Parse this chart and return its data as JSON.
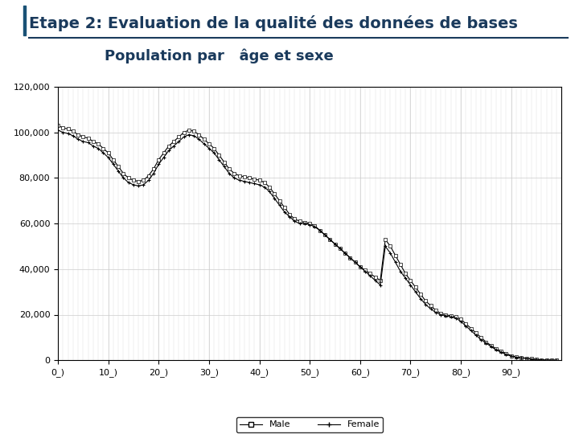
{
  "title_main": "Etape 2: Evaluation de la qualité des données de bases",
  "title_sub": "Population par   âge et sexe",
  "bg_color": "#ffffff",
  "plot_bg": "#ffffff",
  "xlim": [
    0,
    100
  ],
  "ylim": [
    0,
    120000
  ],
  "yticks": [
    0,
    20000,
    40000,
    60000,
    80000,
    100000,
    120000
  ],
  "xtick_labels": [
    "0_)",
    "10_)",
    "20_)",
    "30_)",
    "40_)",
    "50_)",
    "60_)",
    "70_)",
    "80_)",
    "90_)"
  ],
  "xtick_positions": [
    0,
    10,
    20,
    30,
    40,
    50,
    60,
    70,
    80,
    90
  ],
  "legend_male": "Male",
  "legend_female": "Female",
  "accent_color": "#1a5276",
  "line_color": "#000000",
  "male_data": [
    103000,
    102000,
    101500,
    100500,
    99000,
    98000,
    97500,
    96000,
    95000,
    93000,
    91000,
    88000,
    85000,
    82000,
    80000,
    79000,
    78500,
    79000,
    81000,
    84000,
    88000,
    91000,
    94000,
    96000,
    98000,
    100000,
    101000,
    100500,
    99000,
    97000,
    95000,
    93000,
    90000,
    87000,
    84000,
    82000,
    81000,
    80500,
    80000,
    79500,
    79000,
    78000,
    76000,
    73000,
    70000,
    67000,
    64000,
    62000,
    61000,
    60500,
    60000,
    59000,
    57000,
    55000,
    53000,
    51000,
    49000,
    47000,
    45000,
    43000,
    41000,
    39500,
    38000,
    36500,
    35000,
    53000,
    50000,
    46000,
    42000,
    38000,
    35000,
    32000,
    29000,
    26000,
    24000,
    22000,
    20500,
    20000,
    19500,
    19000,
    18000,
    16000,
    14000,
    12000,
    10000,
    8000,
    6500,
    5000,
    4000,
    3000,
    2000,
    1500,
    1200,
    900,
    600,
    400,
    200,
    100,
    50,
    20
  ],
  "female_data": [
    101000,
    100000,
    99500,
    98500,
    97000,
    96000,
    95500,
    94000,
    93000,
    91000,
    89000,
    86000,
    83000,
    80000,
    78000,
    77000,
    76500,
    77000,
    79000,
    82000,
    86000,
    89000,
    92000,
    94000,
    96000,
    98000,
    99000,
    98500,
    97000,
    95000,
    93000,
    91000,
    88000,
    85000,
    82000,
    80000,
    79000,
    78500,
    78000,
    77500,
    77000,
    76000,
    74000,
    71000,
    68000,
    65000,
    63000,
    61000,
    60000,
    60000,
    59500,
    58500,
    57000,
    55000,
    53000,
    51000,
    49000,
    47000,
    45000,
    43000,
    41000,
    39000,
    37000,
    35000,
    33000,
    50000,
    47000,
    43000,
    39000,
    36000,
    33000,
    30000,
    27000,
    24500,
    22500,
    21000,
    20000,
    19500,
    19000,
    18500,
    17000,
    15000,
    13000,
    11000,
    9000,
    7500,
    6000,
    4500,
    3500,
    2500,
    1800,
    1300,
    1000,
    750,
    500,
    300,
    150,
    80,
    40,
    15
  ]
}
